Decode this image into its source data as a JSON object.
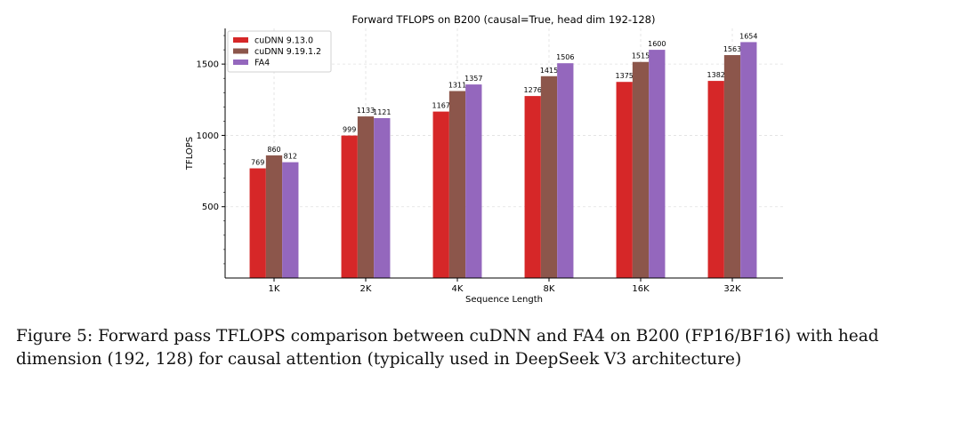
{
  "chart_data": {
    "type": "bar",
    "title": "Forward TFLOPS on B200 (causal=True, head dim 192-128)",
    "xlabel": "Sequence Length",
    "ylabel": "TFLOPS",
    "categories": [
      "1K",
      "2K",
      "4K",
      "8K",
      "16K",
      "32K"
    ],
    "yticks": [
      500,
      1000,
      1500
    ],
    "ylim": [
      0,
      1750
    ],
    "grid": true,
    "legend": "top-left",
    "series": [
      {
        "name": "cuDNN 9.13.0",
        "color": "#d62728",
        "values": [
          769,
          999,
          1167,
          1276,
          1375,
          1382
        ]
      },
      {
        "name": "cuDNN 9.19.1.2",
        "color": "#8c564b",
        "values": [
          860,
          1133,
          1311,
          1415,
          1515,
          1563
        ]
      },
      {
        "name": "FA4",
        "color": "#9467bd",
        "values": [
          812,
          1121,
          1357,
          1506,
          1600,
          1654
        ]
      }
    ]
  },
  "caption": {
    "line1": "Figure 5: Forward pass TFLOPS comparison between cuDNN and FA4 on B200 (FP16/BF16) with head",
    "line2": "dimension (192, 128) for causal attention (typically used in DeepSeek V3 architecture)"
  }
}
